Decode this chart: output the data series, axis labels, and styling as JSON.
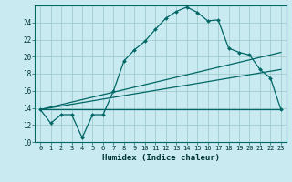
{
  "background_color": "#c8eaf0",
  "grid_color": "#a0cccc",
  "line_color": "#006666",
  "xlabel": "Humidex (Indice chaleur)",
  "ylim": [
    10,
    26
  ],
  "xlim": [
    -0.5,
    23.5
  ],
  "yticks": [
    10,
    12,
    14,
    16,
    18,
    20,
    22,
    24
  ],
  "xticks": [
    0,
    1,
    2,
    3,
    4,
    5,
    6,
    7,
    8,
    9,
    10,
    11,
    12,
    13,
    14,
    15,
    16,
    17,
    18,
    19,
    20,
    21,
    22,
    23
  ],
  "xtick_labels": [
    "0",
    "1",
    "2",
    "3",
    "4",
    "5",
    "6",
    "7",
    "8",
    "9",
    "10",
    "11",
    "12",
    "13",
    "14",
    "15",
    "16",
    "17",
    "18",
    "19",
    "20",
    "21",
    "22",
    "23"
  ],
  "curve1_x": [
    0,
    1,
    2,
    3,
    4,
    5,
    6,
    7,
    8,
    9,
    10,
    11,
    12,
    13,
    14,
    15,
    16,
    17,
    18,
    19,
    20,
    21,
    22,
    23
  ],
  "curve1_y": [
    13.8,
    12.2,
    13.2,
    13.2,
    10.5,
    13.2,
    13.2,
    16.0,
    19.5,
    20.8,
    21.8,
    23.2,
    24.5,
    25.3,
    25.8,
    25.2,
    24.2,
    24.3,
    21.0,
    20.5,
    20.2,
    18.5,
    17.5,
    13.8
  ],
  "line1_x": [
    0,
    23
  ],
  "line1_y": [
    13.8,
    13.8
  ],
  "line2_x": [
    0,
    23
  ],
  "line2_y": [
    13.8,
    18.5
  ],
  "line3_x": [
    0,
    23
  ],
  "line3_y": [
    13.8,
    20.5
  ]
}
